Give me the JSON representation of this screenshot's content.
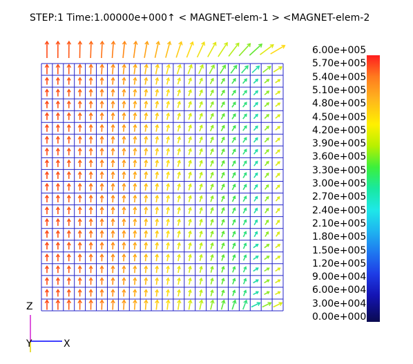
{
  "header": {
    "text": "STEP:1 Time:1.00000e+000↑ < MAGNET-elem-1 > <MAGNET-elem-2"
  },
  "legend": {
    "labels": [
      "6.00e+005",
      "5.70e+005",
      "5.40e+005",
      "5.10e+005",
      "4.80e+005",
      "4.50e+005",
      "4.20e+005",
      "3.90e+005",
      "3.60e+005",
      "3.30e+005",
      "3.00e+005",
      "2.70e+005",
      "2.40e+005",
      "2.10e+005",
      "1.80e+005",
      "1.50e+005",
      "1.20e+005",
      "9.00e+004",
      "6.00e+004",
      "3.00e+004",
      "0.00e+000"
    ]
  },
  "axes": {
    "z_label": "Z",
    "y_label": "Y",
    "x_label": "X"
  },
  "colors": {
    "mesh": "#2020c8",
    "axis_z": "#d020d0",
    "axis_y": "#e0d000",
    "axis_x": "#0000ff"
  }
}
